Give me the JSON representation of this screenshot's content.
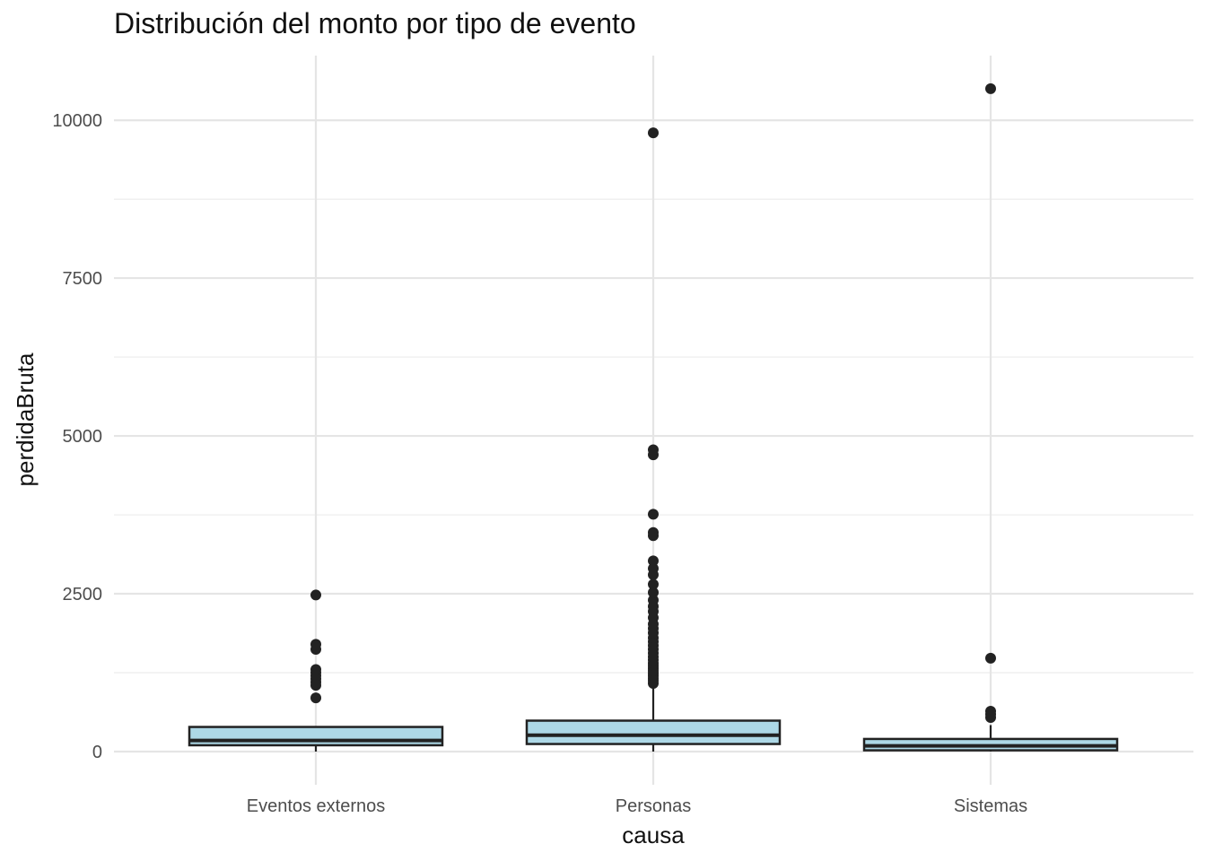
{
  "chart_data": {
    "type": "boxplot",
    "title": "Distribución del monto por tipo de evento",
    "xlabel": "causa",
    "ylabel": "perdidaBruta",
    "categories": [
      "Eventos externos",
      "Personas",
      "Sistemas"
    ],
    "y_ticks": [
      0,
      2500,
      5000,
      7500,
      10000
    ],
    "y_tick_labels": [
      "0",
      "2500",
      "5000",
      "7500",
      "10000"
    ],
    "ylim": [
      -500,
      11000
    ],
    "grid": true,
    "box_fill": "#add8e6",
    "box_stroke": "#222222",
    "point_color": "#222222",
    "grid_color": "#e5e5e5",
    "boxes": [
      {
        "category": "Eventos externos",
        "min": 0,
        "q1": 100,
        "median": 175,
        "q3": 390,
        "max": 390,
        "outliers": [
          850,
          1050,
          1100,
          1150,
          1200,
          1250,
          1300,
          1620,
          1700,
          2480
        ]
      },
      {
        "category": "Personas",
        "min": 0,
        "q1": 120,
        "median": 260,
        "q3": 490,
        "max": 1050,
        "outliers": [
          1080,
          1120,
          1160,
          1200,
          1240,
          1280,
          1320,
          1360,
          1400,
          1450,
          1500,
          1560,
          1620,
          1680,
          1740,
          1800,
          1880,
          1950,
          2020,
          2120,
          2220,
          2300,
          2400,
          2520,
          2650,
          2800,
          2900,
          3020,
          3420,
          3470,
          3760,
          4700,
          4780,
          9800
        ]
      },
      {
        "category": "Sistemas",
        "min": 0,
        "q1": 20,
        "median": 90,
        "q3": 200,
        "max": 420,
        "outliers": [
          540,
          590,
          640,
          1480,
          10500
        ]
      }
    ]
  }
}
